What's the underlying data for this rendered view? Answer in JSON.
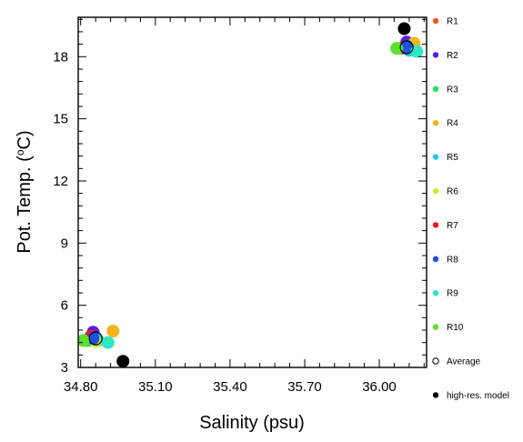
{
  "chart_data": {
    "type": "scatter",
    "xlabel": "Salinity (psu)",
    "ylabel_main": "Pot. Temp. (",
    "ylabel_unit_sup": "o",
    "ylabel_unit": "C)",
    "xlim": [
      34.79,
      36.19
    ],
    "ylim": [
      3,
      19.9
    ],
    "xticks": [
      "34.80",
      "35.10",
      "35.40",
      "35.70",
      "36.00"
    ],
    "xtick_values": [
      34.8,
      35.1,
      35.4,
      35.7,
      36.0
    ],
    "yticks": [
      "3",
      "6",
      "9",
      "12",
      "15",
      "18"
    ],
    "ytick_values": [
      3,
      6,
      9,
      12,
      15,
      18
    ],
    "grid": false,
    "legend_position": "right",
    "series": [
      {
        "name": "R1",
        "color": "#f4511e",
        "points": [
          {
            "x": 34.84,
            "y": 4.4
          },
          {
            "x": 36.09,
            "y": 18.4
          }
        ]
      },
      {
        "name": "R2",
        "color": "#5b1de0",
        "points": [
          {
            "x": 34.85,
            "y": 4.7
          },
          {
            "x": 36.11,
            "y": 18.7
          }
        ]
      },
      {
        "name": "R3",
        "color": "#27e05a",
        "points": [
          {
            "x": 34.83,
            "y": 4.3
          },
          {
            "x": 36.08,
            "y": 18.4
          }
        ]
      },
      {
        "name": "R4",
        "color": "#f5b51b",
        "points": [
          {
            "x": 34.93,
            "y": 4.75
          },
          {
            "x": 36.14,
            "y": 18.65
          }
        ]
      },
      {
        "name": "R5",
        "color": "#1ec8ef",
        "points": [
          {
            "x": 34.87,
            "y": 4.3
          },
          {
            "x": 36.12,
            "y": 18.3
          }
        ]
      },
      {
        "name": "R6",
        "color": "#c6ee2e",
        "points": [
          {
            "x": 34.86,
            "y": 4.25
          },
          {
            "x": 36.07,
            "y": 18.4
          }
        ]
      },
      {
        "name": "R7",
        "color": "#ef1a1a",
        "points": [
          {
            "x": 34.84,
            "y": 4.5
          },
          {
            "x": 36.1,
            "y": 18.45
          }
        ]
      },
      {
        "name": "R8",
        "color": "#1b51e6",
        "points": [
          {
            "x": 34.85,
            "y": 4.4
          },
          {
            "x": 36.11,
            "y": 18.5
          }
        ]
      },
      {
        "name": "R9",
        "color": "#2ee8c6",
        "points": [
          {
            "x": 34.91,
            "y": 4.2
          },
          {
            "x": 36.15,
            "y": 18.25
          }
        ]
      },
      {
        "name": "R10",
        "color": "#5ee031",
        "points": [
          {
            "x": 34.81,
            "y": 4.3
          },
          {
            "x": 36.07,
            "y": 18.4
          }
        ]
      },
      {
        "name": "Average",
        "color": "#000000",
        "hollow": true,
        "points": [
          {
            "x": 34.86,
            "y": 4.4
          },
          {
            "x": 36.11,
            "y": 18.45
          }
        ]
      },
      {
        "name": "high-res. model",
        "color": "#000000",
        "points": [
          {
            "x": 34.97,
            "y": 3.3
          },
          {
            "x": 36.1,
            "y": 19.35
          }
        ]
      }
    ]
  }
}
